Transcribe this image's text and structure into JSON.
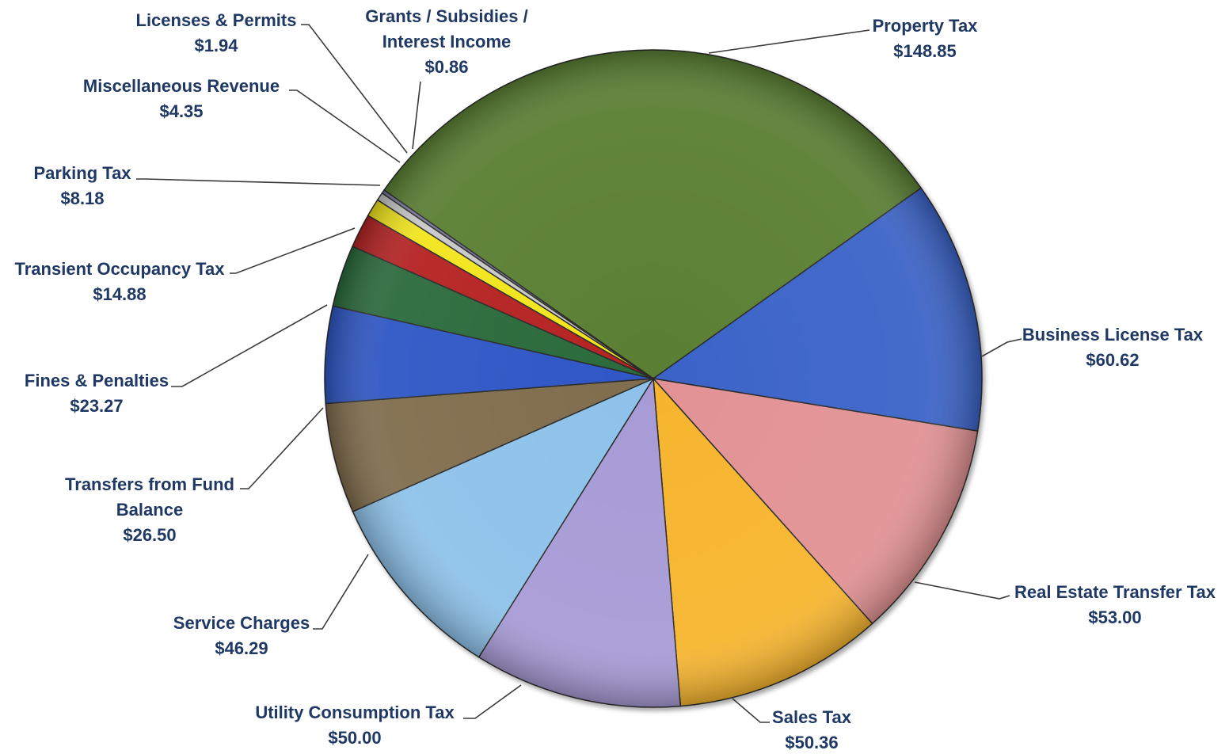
{
  "chart_data": {
    "type": "pie",
    "title": "",
    "slices": [
      {
        "label": [
          "Property Tax"
        ],
        "value_text": "$148.85",
        "value": 148.85,
        "color": "#5a7f32"
      },
      {
        "label": [
          "Business License Tax"
        ],
        "value_text": "$60.62",
        "value": 60.62,
        "color": "#3b64c8"
      },
      {
        "label": [
          "Real Estate Transfer Tax"
        ],
        "value_text": "$53.00",
        "value": 53.0,
        "color": "#e29294"
      },
      {
        "label": [
          "Sales Tax"
        ],
        "value_text": "$50.36",
        "value": 50.36,
        "color": "#f7b52d"
      },
      {
        "label": [
          "Utility Consumption Tax"
        ],
        "value_text": "$50.00",
        "value": 50.0,
        "color": "#a79bd6"
      },
      {
        "label": [
          "Service Charges"
        ],
        "value_text": "$46.29",
        "value": 46.29,
        "color": "#8ec2ea"
      },
      {
        "label": [
          "Transfers from Fund",
          "Balance"
        ],
        "value_text": "$26.50",
        "value": 26.5,
        "color": "#806d4e"
      },
      {
        "label": [
          "Fines & Penalties"
        ],
        "value_text": "$23.27",
        "value": 23.27,
        "color": "#2f57c5"
      },
      {
        "label": [
          "Transient  Occupancy Tax"
        ],
        "value_text": "$14.88",
        "value": 14.88,
        "color": "#2b6a3a"
      },
      {
        "label": [
          "Parking Tax"
        ],
        "value_text": "$8.18",
        "value": 8.18,
        "color": "#b52020"
      },
      {
        "label": [
          "Miscellaneous Revenue"
        ],
        "value_text": "$4.35",
        "value": 4.35,
        "color": "#f2e51d"
      },
      {
        "label": [
          "Licenses & Permits"
        ],
        "value_text": "$1.94",
        "value": 1.94,
        "color": "#c8c8c8"
      },
      {
        "label": [
          "Grants / Subsidies /",
          "Interest Income"
        ],
        "value_text": "$0.86",
        "value": 0.86,
        "color": "#7a7a9a"
      }
    ]
  }
}
